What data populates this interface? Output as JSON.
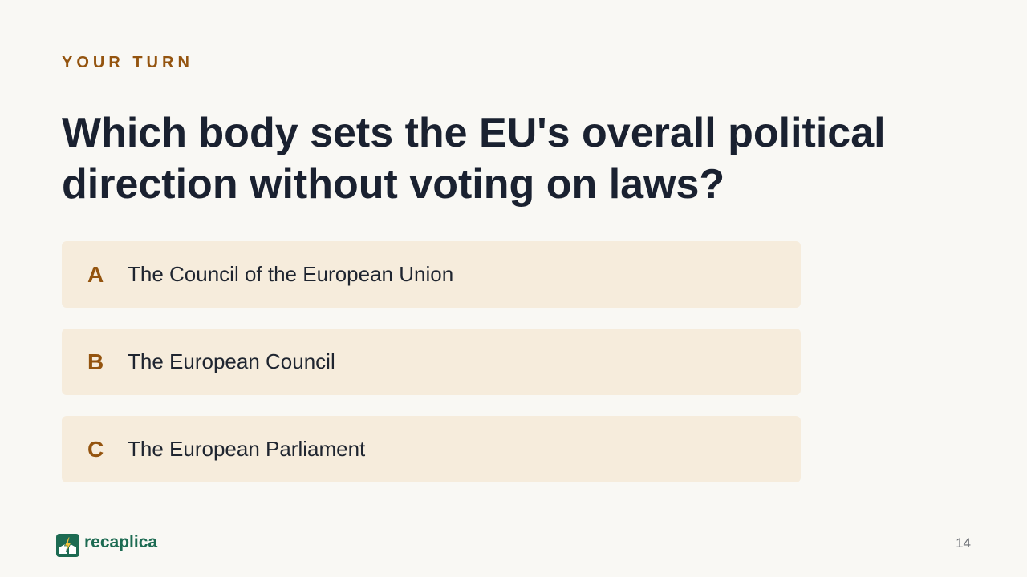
{
  "slide": {
    "eyebrow": "YOUR TURN",
    "question": "Which body sets the EU's overall political direction without voting on laws?",
    "options": [
      {
        "letter": "A",
        "text": "The Council of the European Union"
      },
      {
        "letter": "B",
        "text": "The European Council"
      },
      {
        "letter": "C",
        "text": "The European Parliament"
      }
    ]
  },
  "footer": {
    "brand_name": "recaplica",
    "brand_logo_icon": "recaplica-logo-icon",
    "page_number": "14"
  },
  "colors": {
    "background": "#f9f8f4",
    "accent": "#94540f",
    "option_background": "#f6ecdc",
    "heading": "#1a2130",
    "brand": "#1d6b52"
  }
}
